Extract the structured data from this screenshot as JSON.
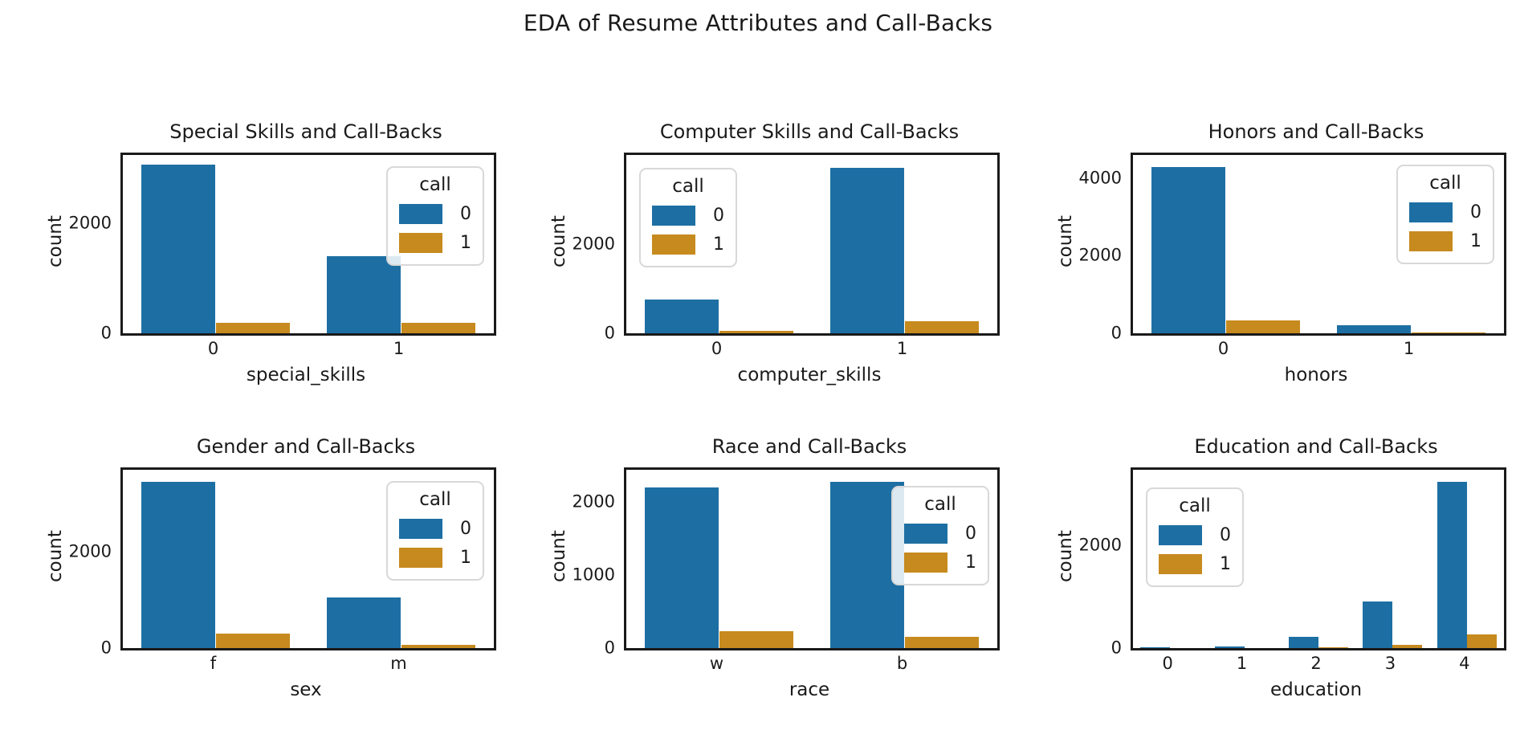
{
  "figure": {
    "title": "EDA of Resume Attributes and Call-Backs"
  },
  "colors": {
    "call0": "#1d6fa3",
    "call1": "#c68a1e",
    "text": "#1a1a1a",
    "spine": "#1a1a1a",
    "legend_border": "#d8d8d8"
  },
  "chart_data": [
    {
      "type": "bar",
      "title": "Special Skills and Call-Backs",
      "xlabel": "special_skills",
      "ylabel": "count",
      "categories": [
        "0",
        "1"
      ],
      "series": [
        {
          "name": "0",
          "color": "call0",
          "values": [
            3060,
            1390
          ]
        },
        {
          "name": "1",
          "color": "call1",
          "values": [
            190,
            195
          ]
        }
      ],
      "yticks": [
        0,
        2000
      ],
      "ylim": [
        0,
        3230
      ],
      "grid": false,
      "legend": {
        "title": "call",
        "entries": [
          "0",
          "1"
        ],
        "location": "upper right"
      }
    },
    {
      "type": "bar",
      "title": "Computer Skills and Call-Backs",
      "xlabel": "computer_skills",
      "ylabel": "count",
      "categories": [
        "0",
        "1"
      ],
      "series": [
        {
          "name": "0",
          "color": "call0",
          "values": [
            760,
            3720
          ]
        },
        {
          "name": "1",
          "color": "call1",
          "values": [
            50,
            280
          ]
        }
      ],
      "yticks": [
        0,
        2000
      ],
      "ylim": [
        0,
        4010
      ],
      "grid": false,
      "legend": {
        "title": "call",
        "entries": [
          "0",
          "1"
        ],
        "location": "upper left"
      }
    },
    {
      "type": "bar",
      "title": "Honors and Call-Backs",
      "xlabel": "honors",
      "ylabel": "count",
      "categories": [
        "0",
        "1"
      ],
      "series": [
        {
          "name": "0",
          "color": "call0",
          "values": [
            4280,
            200
          ]
        },
        {
          "name": "1",
          "color": "call1",
          "values": [
            330,
            20
          ]
        }
      ],
      "yticks": [
        0,
        2000,
        4000
      ],
      "ylim": [
        0,
        4600
      ],
      "grid": false,
      "legend": {
        "title": "call",
        "entries": [
          "0",
          "1"
        ],
        "location": "upper right"
      }
    },
    {
      "type": "bar",
      "title": "Gender and Call-Backs",
      "xlabel": "sex",
      "ylabel": "count",
      "categories": [
        "f",
        "m"
      ],
      "series": [
        {
          "name": "0",
          "color": "call0",
          "values": [
            3440,
            1040
          ]
        },
        {
          "name": "1",
          "color": "call1",
          "values": [
            300,
            60
          ]
        }
      ],
      "yticks": [
        0,
        2000
      ],
      "ylim": [
        0,
        3690
      ],
      "grid": false,
      "legend": {
        "title": "call",
        "entries": [
          "0",
          "1"
        ],
        "location": "upper right"
      }
    },
    {
      "type": "bar",
      "title": "Race and Call-Backs",
      "xlabel": "race",
      "ylabel": "count",
      "categories": [
        "w",
        "b"
      ],
      "series": [
        {
          "name": "0",
          "color": "call0",
          "values": [
            2200,
            2280
          ]
        },
        {
          "name": "1",
          "color": "call1",
          "values": [
            235,
            157
          ]
        }
      ],
      "yticks": [
        0,
        1000,
        2000
      ],
      "ylim": [
        0,
        2440
      ],
      "grid": false,
      "legend": {
        "title": "call",
        "entries": [
          "0",
          "1"
        ],
        "location": "upper right overlapping"
      }
    },
    {
      "type": "bar",
      "title": "Education and Call-Backs",
      "xlabel": "education",
      "ylabel": "count",
      "categories": [
        "0",
        "1",
        "2",
        "3",
        "4"
      ],
      "series": [
        {
          "name": "0",
          "color": "call0",
          "values": [
            20,
            25,
            215,
            900,
            3220
          ]
        },
        {
          "name": "1",
          "color": "call1",
          "values": [
            0,
            0,
            12,
            60,
            265
          ]
        }
      ],
      "yticks": [
        0,
        2000
      ],
      "ylim": [
        0,
        3460
      ],
      "grid": false,
      "legend": {
        "title": "call",
        "entries": [
          "0",
          "1"
        ],
        "location": "upper left"
      }
    }
  ]
}
